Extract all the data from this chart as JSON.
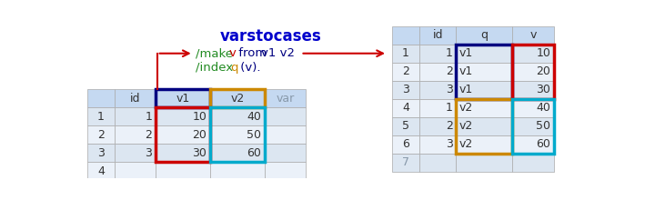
{
  "title": "varstocases",
  "title_color": "#0000CC",
  "left_table": {
    "headers": [
      "",
      "id",
      "v1",
      "v2",
      "var"
    ],
    "rows": [
      [
        "1",
        "1",
        "10",
        "40",
        ""
      ],
      [
        "2",
        "2",
        "20",
        "50",
        ""
      ],
      [
        "3",
        "3",
        "30",
        "60",
        ""
      ],
      [
        "4",
        "",
        "",
        "",
        ""
      ]
    ],
    "header_bg": "#C5D9F1",
    "row_bg_odd": "#DCE6F1",
    "row_bg_even": "#EBF1F9",
    "row_bg_empty": "#EBF1F9",
    "v1_header_border": "#000080",
    "v2_header_border": "#CC8800",
    "v1_data_border": "#CC0000",
    "v2_data_border": "#00AACC",
    "var_color": "#8899AA"
  },
  "right_table": {
    "headers": [
      "",
      "id",
      "q",
      "v"
    ],
    "rows": [
      [
        "1",
        "1",
        "v1",
        "10"
      ],
      [
        "2",
        "2",
        "v1",
        "20"
      ],
      [
        "3",
        "3",
        "v1",
        "30"
      ],
      [
        "4",
        "1",
        "v2",
        "40"
      ],
      [
        "5",
        "2",
        "v2",
        "50"
      ],
      [
        "6",
        "3",
        "v2",
        "60"
      ],
      [
        "7",
        "",
        "",
        ""
      ]
    ],
    "header_bg": "#C5D9F1",
    "row_bg_odd": "#DCE6F1",
    "row_bg_even": "#EBF1F9",
    "q_border_v1": "#000080",
    "q_border_v2": "#CC8800",
    "v_border_v1": "#CC0000",
    "v_border_v2": "#00AACC"
  },
  "arrow_color": "#CC0000",
  "bg_color": "#FFFFFF",
  "cmd_make_green": "#228B22",
  "cmd_make_v_red": "#CC0000",
  "cmd_make_from_blue": "#000080",
  "cmd_make_v1v2_blue": "#000080",
  "cmd_index_green": "#228B22",
  "cmd_index_q_orange": "#CC8800",
  "cmd_index_rest_blue": "#000080"
}
